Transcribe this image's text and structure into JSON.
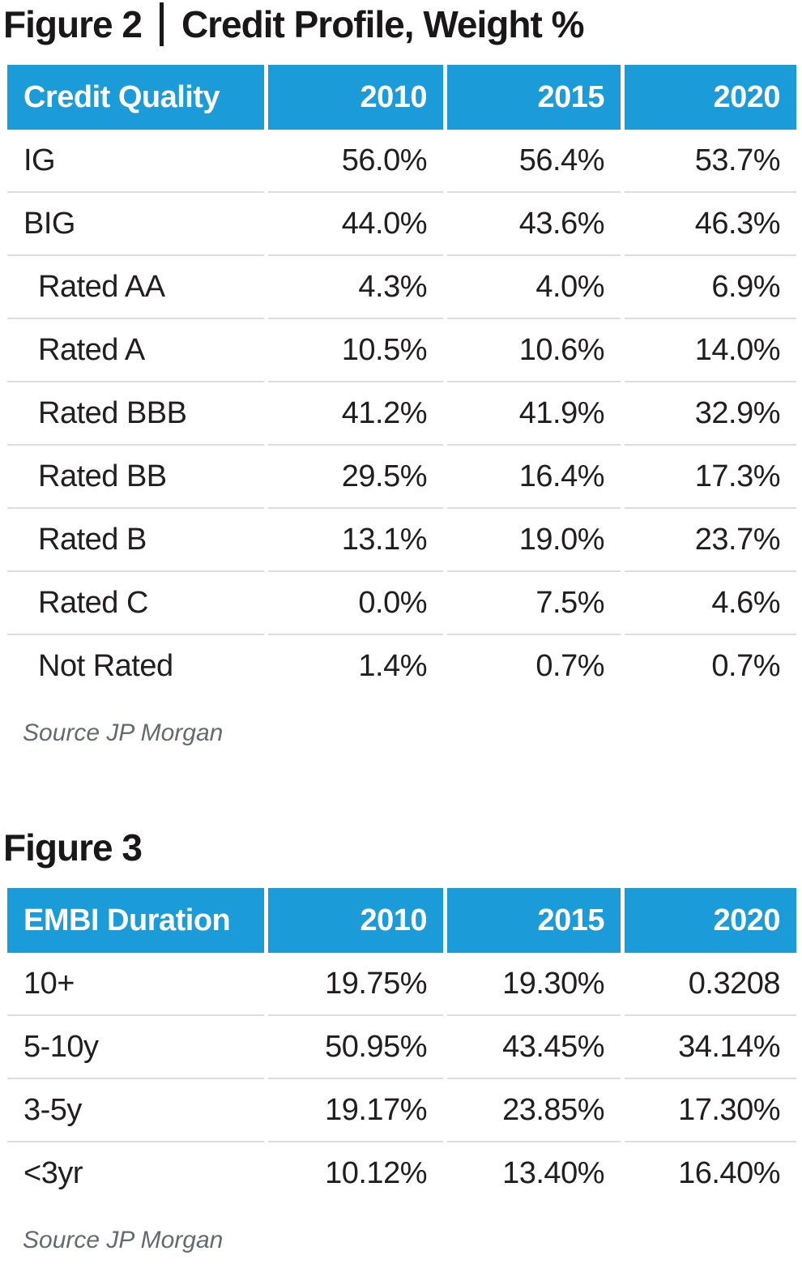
{
  "colors": {
    "header_bg": "#1b9bd8",
    "header_text": "#ffffff",
    "body_text": "#221E1F",
    "divider": "#dcdcdc",
    "source_text": "#646a70",
    "title_text": "#1a1718"
  },
  "figure2": {
    "title_label": "Figure 2",
    "title_separator": "|",
    "title_text": "Credit Profile, Weight %",
    "table": {
      "header": [
        "Credit Quality",
        "2010",
        "2015",
        "2020"
      ],
      "rows": [
        {
          "label": "IG",
          "indent": false,
          "values": [
            "56.0%",
            "56.4%",
            "53.7%"
          ]
        },
        {
          "label": "BIG",
          "indent": false,
          "values": [
            "44.0%",
            "43.6%",
            "46.3%"
          ]
        },
        {
          "label": "Rated AA",
          "indent": true,
          "values": [
            "4.3%",
            "4.0%",
            "6.9%"
          ]
        },
        {
          "label": "Rated A",
          "indent": true,
          "values": [
            "10.5%",
            "10.6%",
            "14.0%"
          ]
        },
        {
          "label": "Rated BBB",
          "indent": true,
          "values": [
            "41.2%",
            "41.9%",
            "32.9%"
          ]
        },
        {
          "label": "Rated BB",
          "indent": true,
          "values": [
            "29.5%",
            "16.4%",
            "17.3%"
          ]
        },
        {
          "label": "Rated B",
          "indent": true,
          "values": [
            "13.1%",
            "19.0%",
            "23.7%"
          ]
        },
        {
          "label": "Rated C",
          "indent": true,
          "values": [
            "0.0%",
            "7.5%",
            "4.6%"
          ]
        },
        {
          "label": "Not Rated",
          "indent": true,
          "values": [
            "1.4%",
            "0.7%",
            "0.7%"
          ]
        }
      ]
    },
    "source": "Source JP Morgan"
  },
  "figure3": {
    "title_label": "Figure 3",
    "table": {
      "header": [
        "EMBI Duration",
        "2010",
        "2015",
        "2020"
      ],
      "rows": [
        {
          "label": "10+",
          "indent": false,
          "values": [
            "19.75%",
            "19.30%",
            "0.3208"
          ]
        },
        {
          "label": "5-10y",
          "indent": false,
          "values": [
            "50.95%",
            "43.45%",
            "34.14%"
          ]
        },
        {
          "label": "3-5y",
          "indent": false,
          "values": [
            "19.17%",
            "23.85%",
            "17.30%"
          ]
        },
        {
          "label": "<3yr",
          "indent": false,
          "values": [
            "10.12%",
            "13.40%",
            "16.40%"
          ]
        }
      ]
    },
    "source": "Source JP Morgan"
  }
}
